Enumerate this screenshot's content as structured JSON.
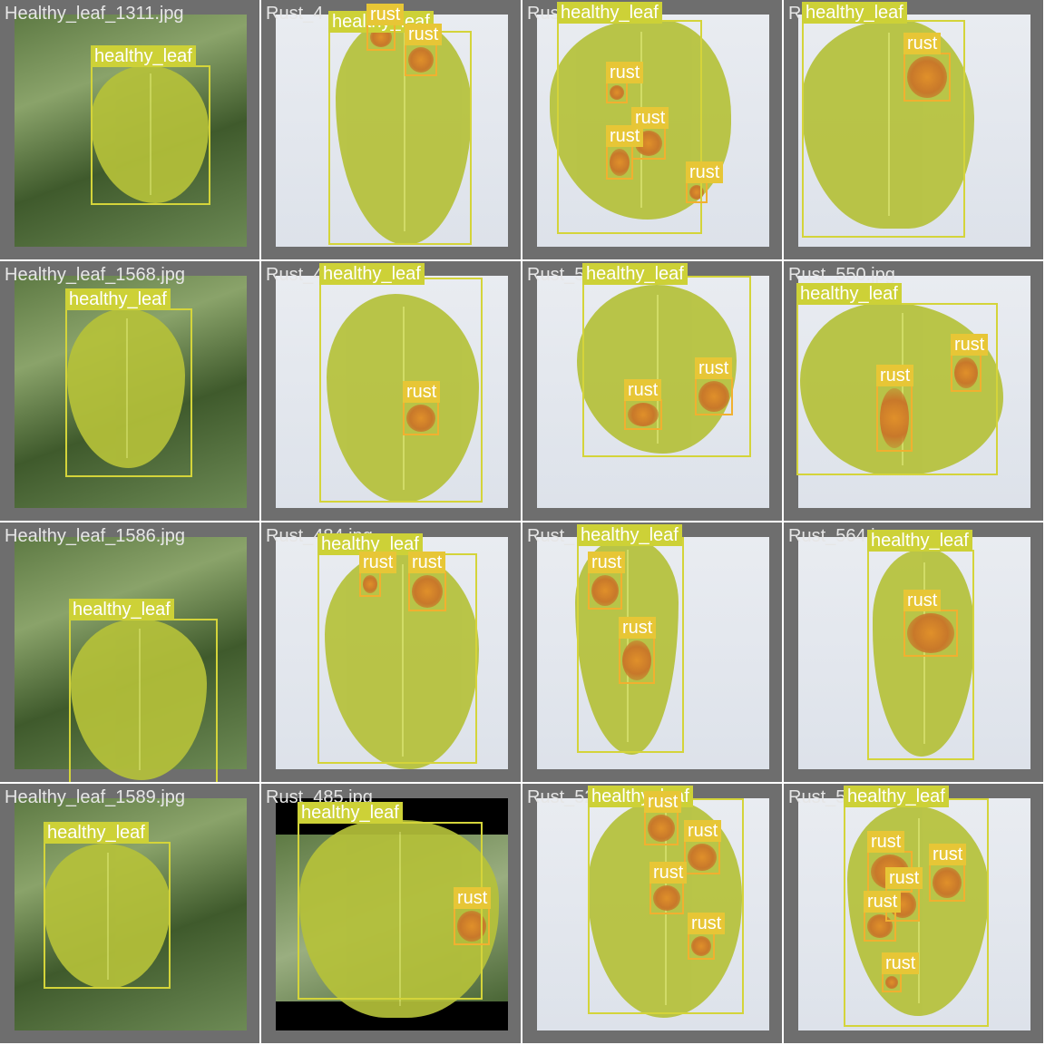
{
  "colors": {
    "tile_bg": "#6e6e6e",
    "leaf_fill": "#b5c13a",
    "healthy_box": "#d4d43a",
    "rust_box": "#f1b030",
    "rust_label_bg": "#e7c636",
    "healthy_label_bg": "#cdd137"
  },
  "tiles": [
    {
      "filename": "Healthy_leaf_1311.jpg",
      "background": "field",
      "leaf": "healthy_leaf",
      "rust_count": 0
    },
    {
      "filename": "Rust_4",
      "background": "paper",
      "leaf": "healthy_leaf",
      "rust_count": 2
    },
    {
      "filename": "Rust_487.jpg",
      "background": "paper",
      "leaf": "healthy_leaf",
      "rust_count": 4
    },
    {
      "filename": "Rust_534.jpg",
      "background": "paper",
      "leaf": "healthy_leaf",
      "rust_count": 1
    },
    {
      "filename": "Healthy_leaf_1568.jpg",
      "background": "field",
      "leaf": "healthy_leaf",
      "rust_count": 0
    },
    {
      "filename": "Rust_475.jpg",
      "background": "paper",
      "leaf": "healthy_leaf",
      "rust_count": 1
    },
    {
      "filename": "Rust_518.jpg",
      "background": "paper",
      "leaf": "healthy_leaf",
      "rust_count": 2
    },
    {
      "filename": "Rust_550.jpg",
      "background": "paper",
      "leaf": "healthy_leaf",
      "rust_count": 2
    },
    {
      "filename": "Healthy_leaf_1586.jpg",
      "background": "field",
      "leaf": "healthy_leaf",
      "rust_count": 0
    },
    {
      "filename": "Rust_484.jpg",
      "background": "paper",
      "leaf": "healthy_leaf",
      "rust_count": 2
    },
    {
      "filename": "Rust_",
      "background": "paper",
      "leaf": "healthy_leaf",
      "rust_count": 2
    },
    {
      "filename": "Rust_564.j",
      "background": "paper",
      "leaf": "healthy_leaf",
      "rust_count": 1
    },
    {
      "filename": "Healthy_leaf_1589.jpg",
      "background": "field",
      "leaf": "healthy_leaf",
      "rust_count": 0
    },
    {
      "filename": "Rust_485.jpg",
      "background": "black",
      "leaf": "healthy_leaf",
      "rust_count": 1
    },
    {
      "filename": "Rust_522.jpg",
      "background": "paper",
      "leaf": "healthy_leaf",
      "rust_count": 4
    },
    {
      "filename": "Rust_576.jpg",
      "background": "paper",
      "leaf": "healthy_leaf",
      "rust_count": 5
    }
  ],
  "labels": {
    "healthy": "healthy_leaf",
    "rust": "rust"
  }
}
